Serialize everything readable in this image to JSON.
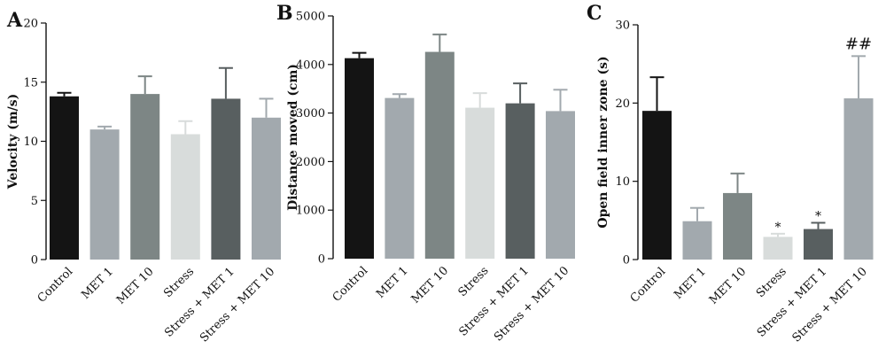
{
  "figure": {
    "panels": [
      {
        "letter": "A"
      },
      {
        "letter": "B"
      },
      {
        "letter": "C"
      }
    ]
  },
  "chart_data": [
    {
      "type": "bar",
      "panel": "A",
      "categories": [
        "Control",
        "MET 1",
        "MET 10",
        "Stress",
        "Stress + MET 1",
        "Stress + MET 10"
      ],
      "values": [
        13.8,
        11.0,
        14.0,
        10.6,
        13.6,
        12.0
      ],
      "errors": [
        0.3,
        0.25,
        1.5,
        1.1,
        2.6,
        1.6
      ],
      "colors": [
        "#141414",
        "#a2a9ae",
        "#7d8685",
        "#d8dcdb",
        "#585f60",
        "#a2a9ae"
      ],
      "annotations": [
        "",
        "",
        "",
        "",
        "",
        ""
      ],
      "ylabel": "Velocity (m/s)",
      "ylim": [
        0,
        20
      ],
      "yticks": [
        0,
        5,
        10,
        15,
        20
      ]
    },
    {
      "type": "bar",
      "panel": "B",
      "categories": [
        "Control",
        "MET 1",
        "MET 10",
        "Stress",
        "Stress + MET 1",
        "Stress + MET 10"
      ],
      "values": [
        4130,
        3310,
        4260,
        3110,
        3200,
        3040
      ],
      "errors": [
        110,
        80,
        360,
        300,
        410,
        440
      ],
      "colors": [
        "#141414",
        "#a2a9ae",
        "#7d8685",
        "#d8dcdb",
        "#585f60",
        "#a2a9ae"
      ],
      "annotations": [
        "",
        "",
        "",
        "",
        "",
        ""
      ],
      "ylabel": "Distance moved (cm)",
      "ylim": [
        0,
        5000
      ],
      "yticks": [
        0,
        1000,
        2000,
        3000,
        4000,
        5000
      ]
    },
    {
      "type": "bar",
      "panel": "C",
      "categories": [
        "Control",
        "MET 1",
        "MET 10",
        "Stress",
        "Stress + MET 1",
        "Stress + MET 10"
      ],
      "values": [
        19.0,
        4.9,
        8.5,
        2.9,
        3.9,
        20.6
      ],
      "errors": [
        4.3,
        1.7,
        2.5,
        0.4,
        0.8,
        5.4
      ],
      "colors": [
        "#141414",
        "#a2a9ae",
        "#7d8685",
        "#d8dcdb",
        "#585f60",
        "#a2a9ae"
      ],
      "annotations": [
        "",
        "",
        "",
        "*",
        "*",
        "##"
      ],
      "ylabel": "Open field inner zone (s)",
      "ylim": [
        0,
        30
      ],
      "yticks": [
        0,
        10,
        20,
        30
      ]
    }
  ]
}
